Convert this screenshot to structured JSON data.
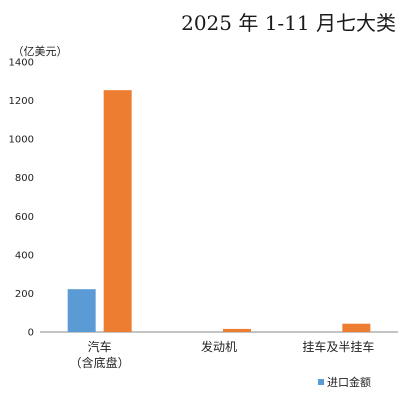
{
  "chart_data": {
    "type": "bar",
    "title": "2025 年 1-11 月七大类",
    "ylabel": "（亿美元）",
    "xlabel": "",
    "ylim": [
      0,
      1400
    ],
    "yticks": [
      0,
      200,
      400,
      600,
      800,
      1000,
      1200,
      1400
    ],
    "grid": false,
    "legend_position": "bottom-right",
    "categories": [
      [
        "汽车",
        "（含底盘）"
      ],
      [
        "发动机"
      ],
      [
        "挂车及半挂车"
      ]
    ],
    "series": [
      {
        "name": "进口金额",
        "color": "#5b9bd5",
        "values": [
          222,
          0,
          0
        ]
      },
      {
        "name": "",
        "color": "#ed7d31",
        "values": [
          1254,
          16,
          43
        ]
      }
    ]
  }
}
